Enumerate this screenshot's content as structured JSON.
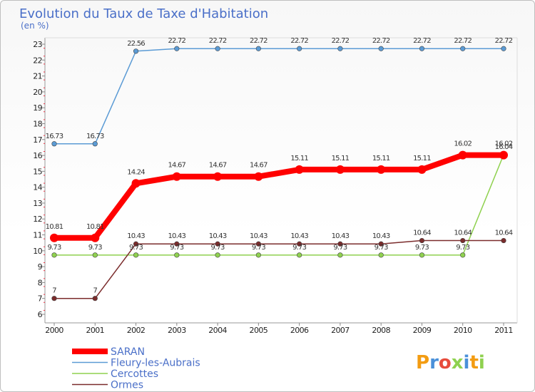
{
  "chart_data": {
    "type": "line",
    "title": "Evolution du Taux de Taxe d'Habitation",
    "ylabel": "(en %)",
    "xlabel": "",
    "ylim": [
      6,
      23
    ],
    "yticks": [
      6,
      7,
      8,
      9,
      10,
      11,
      12,
      13,
      14,
      15,
      16,
      17,
      18,
      19,
      20,
      21,
      22,
      23
    ],
    "categories": [
      "2000",
      "2001",
      "2002",
      "2003",
      "2004",
      "2005",
      "2006",
      "2007",
      "2008",
      "2009",
      "2010",
      "2011"
    ],
    "grid": false,
    "legend_position": "bottom-left",
    "series": [
      {
        "name": "SARAN",
        "color": "#ff0000",
        "emphasis": true,
        "values": [
          10.81,
          10.81,
          14.24,
          14.67,
          14.67,
          14.67,
          15.11,
          15.11,
          15.11,
          15.11,
          16.02,
          16.02
        ],
        "labels": [
          "10.81",
          "10.81",
          "14.24",
          "14.67",
          "14.67",
          "14.67",
          "15.11",
          "15.11",
          "15.11",
          "15.11",
          "16.02",
          "16.02"
        ]
      },
      {
        "name": "Fleury-les-Aubrais",
        "color": "#5b9bd5",
        "emphasis": false,
        "values": [
          16.73,
          16.73,
          22.56,
          22.72,
          22.72,
          22.72,
          22.72,
          22.72,
          22.72,
          22.72,
          22.72,
          22.72
        ],
        "labels": [
          "16.73",
          "16.73",
          "22.56",
          "22.72",
          "22.72",
          "22.72",
          "22.72",
          "22.72",
          "22.72",
          "22.72",
          "22.72",
          "22.72"
        ]
      },
      {
        "name": "Cercottes",
        "color": "#8fd14f",
        "emphasis": false,
        "values": [
          9.73,
          9.73,
          9.73,
          9.73,
          9.73,
          9.73,
          9.73,
          9.73,
          9.73,
          9.73,
          9.73,
          16.04
        ],
        "labels": [
          "9.73",
          "9.73",
          "9.73",
          "9.73",
          "9.73",
          "9.73",
          "9.73",
          "9.73",
          "9.73",
          "9.73",
          "9.73",
          "16.04"
        ]
      },
      {
        "name": "Ormes",
        "color": "#7b2c2c",
        "emphasis": false,
        "values": [
          7,
          7,
          10.43,
          10.43,
          10.43,
          10.43,
          10.43,
          10.43,
          10.43,
          10.64,
          10.64,
          10.64
        ],
        "labels": [
          "7",
          "7",
          "10.43",
          "10.43",
          "10.43",
          "10.43",
          "10.43",
          "10.43",
          "10.43",
          "10.64",
          "10.64",
          "10.64"
        ]
      }
    ]
  },
  "legend": {
    "items": [
      "SARAN",
      "Fleury-les-Aubrais",
      "Cercottes",
      "Ormes"
    ]
  },
  "branding": {
    "logo_text": "Proxiti",
    "logo_colors": [
      "#f39c12",
      "#4a90d9",
      "#e74c3c",
      "#8fd14f",
      "#4a90d9",
      "#f39c12",
      "#8fd14f"
    ]
  }
}
